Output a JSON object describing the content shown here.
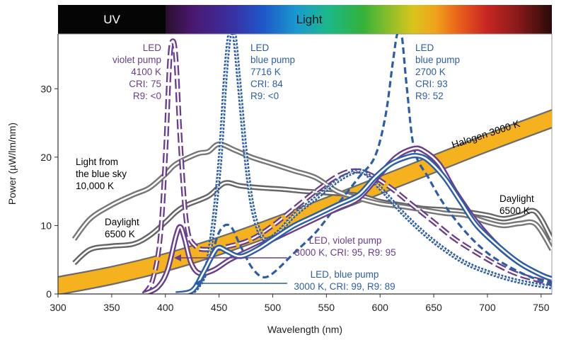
{
  "chart_data": {
    "type": "line",
    "title": "",
    "xlabel": "Wavelength (nm)",
    "ylabel": "Power (µW/lm/nm)",
    "xlim": [
      300,
      760
    ],
    "ylim": [
      0,
      38
    ],
    "x_ticks": [
      300,
      350,
      400,
      450,
      500,
      550,
      600,
      650,
      700,
      750
    ],
    "y_ticks": [
      0,
      10,
      20,
      30
    ],
    "grid": false,
    "band": {
      "uv_label": "UV",
      "light_label": "Light",
      "uv_range": [
        300,
        400
      ],
      "light_range": [
        400,
        760
      ]
    },
    "series": [
      {
        "id": "halogen",
        "name": "Halogen 3000 K",
        "style": "band",
        "color": "#f5b21e",
        "edge": "#6b6b6b",
        "half_width": 1.3,
        "points": [
          [
            300,
            1.2
          ],
          [
            350,
            2.7
          ],
          [
            400,
            4.6
          ],
          [
            450,
            7.0
          ],
          [
            500,
            9.8
          ],
          [
            550,
            12.8
          ],
          [
            600,
            15.9
          ],
          [
            650,
            19.0
          ],
          [
            700,
            22.1
          ],
          [
            760,
            25.6
          ]
        ]
      },
      {
        "id": "daylight",
        "name": "Daylight 6500 K",
        "style": "double",
        "color": "#666666",
        "points": [
          [
            315,
            4.5
          ],
          [
            330,
            6.5
          ],
          [
            350,
            7.0
          ],
          [
            370,
            7.3
          ],
          [
            385,
            8.5
          ],
          [
            400,
            10.5
          ],
          [
            410,
            12.0
          ],
          [
            420,
            13.0
          ],
          [
            440,
            14.3
          ],
          [
            455,
            16.2
          ],
          [
            470,
            15.8
          ],
          [
            490,
            15.5
          ],
          [
            510,
            15.3
          ],
          [
            530,
            15.0
          ],
          [
            550,
            14.8
          ],
          [
            580,
            14.4
          ],
          [
            600,
            13.5
          ],
          [
            620,
            13.0
          ],
          [
            640,
            12.5
          ],
          [
            660,
            12.3
          ],
          [
            680,
            12.0
          ],
          [
            700,
            11.5
          ],
          [
            715,
            11.0
          ],
          [
            730,
            11.5
          ],
          [
            745,
            12.0
          ],
          [
            760,
            8.0
          ]
        ]
      },
      {
        "id": "blue_sky",
        "name": "Light from the blue sky 10,000 K",
        "style": "double",
        "color": "#777777",
        "points": [
          [
            315,
            8.0
          ],
          [
            330,
            11.0
          ],
          [
            350,
            13.0
          ],
          [
            370,
            14.5
          ],
          [
            385,
            15.5
          ],
          [
            400,
            17.5
          ],
          [
            410,
            19.0
          ],
          [
            430,
            20.5
          ],
          [
            440,
            20.8
          ],
          [
            450,
            21.9
          ],
          [
            465,
            21.0
          ],
          [
            480,
            20.0
          ],
          [
            500,
            19.0
          ],
          [
            520,
            18.0
          ],
          [
            540,
            17.0
          ],
          [
            560,
            15.0
          ],
          [
            580,
            14.0
          ],
          [
            600,
            13.2
          ],
          [
            620,
            12.8
          ],
          [
            640,
            12.3
          ],
          [
            660,
            11.8
          ],
          [
            680,
            11.5
          ],
          [
            700,
            10.5
          ],
          [
            715,
            10.0
          ],
          [
            730,
            10.3
          ],
          [
            745,
            10.2
          ],
          [
            760,
            6.5
          ]
        ]
      },
      {
        "id": "led_violet_4100",
        "name": "LED violet pump 4100 K CRI: 75 R9: <0",
        "style": "dashed-double",
        "color": "#6b3e8c",
        "points": [
          [
            380,
            0
          ],
          [
            388,
            2
          ],
          [
            395,
            8
          ],
          [
            400,
            20
          ],
          [
            404,
            34
          ],
          [
            407,
            37
          ],
          [
            410,
            34
          ],
          [
            414,
            22
          ],
          [
            420,
            10
          ],
          [
            428,
            7
          ],
          [
            440,
            6.5
          ],
          [
            460,
            7.0
          ],
          [
            480,
            8.0
          ],
          [
            500,
            10.0
          ],
          [
            520,
            12.5
          ],
          [
            540,
            15.0
          ],
          [
            560,
            17.2
          ],
          [
            575,
            18.0
          ],
          [
            590,
            17.5
          ],
          [
            610,
            15.5
          ],
          [
            630,
            13.0
          ],
          [
            650,
            10.5
          ],
          [
            670,
            8.0
          ],
          [
            690,
            6.0
          ],
          [
            710,
            4.2
          ],
          [
            730,
            2.8
          ],
          [
            760,
            1.5
          ]
        ]
      },
      {
        "id": "led_blue_7716",
        "name": "LED blue pump 7716 K CRI: 84 R9: <0",
        "style": "dotted-double",
        "color": "#2c5ea8",
        "points": [
          [
            420,
            0
          ],
          [
            430,
            1
          ],
          [
            440,
            5
          ],
          [
            450,
            18
          ],
          [
            456,
            32
          ],
          [
            460,
            38
          ],
          [
            464,
            38
          ],
          [
            468,
            32
          ],
          [
            475,
            20
          ],
          [
            482,
            12
          ],
          [
            492,
            8
          ],
          [
            505,
            9
          ],
          [
            520,
            11.5
          ],
          [
            540,
            14.0
          ],
          [
            560,
            16.5
          ],
          [
            575,
            17.8
          ],
          [
            585,
            17.8
          ],
          [
            600,
            15.5
          ],
          [
            620,
            12.0
          ],
          [
            640,
            9.0
          ],
          [
            660,
            6.5
          ],
          [
            680,
            4.5
          ],
          [
            700,
            3.2
          ],
          [
            720,
            2.2
          ],
          [
            740,
            1.5
          ],
          [
            760,
            1.0
          ]
        ]
      },
      {
        "id": "led_blue_2700",
        "name": "LED blue pump 2700 K CRI: 93 R9: 52",
        "style": "dashed",
        "color": "#2c5ea8",
        "points": [
          [
            420,
            0
          ],
          [
            430,
            1
          ],
          [
            440,
            4
          ],
          [
            450,
            9
          ],
          [
            460,
            10
          ],
          [
            470,
            7
          ],
          [
            480,
            4
          ],
          [
            490,
            2.5
          ],
          [
            500,
            3
          ],
          [
            520,
            6
          ],
          [
            540,
            9
          ],
          [
            560,
            13
          ],
          [
            580,
            17
          ],
          [
            595,
            20
          ],
          [
            605,
            26
          ],
          [
            612,
            34
          ],
          [
            616,
            38
          ],
          [
            620,
            38
          ],
          [
            625,
            30
          ],
          [
            632,
            21
          ],
          [
            645,
            17
          ],
          [
            660,
            13
          ],
          [
            680,
            9
          ],
          [
            700,
            6
          ],
          [
            720,
            4
          ],
          [
            740,
            2.5
          ],
          [
            760,
            1.5
          ]
        ]
      },
      {
        "id": "led_violet_3000",
        "name": "LED, violet pump 3000 K, CRI: 95, R9: 95",
        "style": "double",
        "color": "#6b3e8c",
        "points": [
          [
            380,
            0
          ],
          [
            393,
            1
          ],
          [
            402,
            3.5
          ],
          [
            410,
            8.5
          ],
          [
            414,
            9.8
          ],
          [
            418,
            8.0
          ],
          [
            424,
            4.5
          ],
          [
            432,
            3.0
          ],
          [
            445,
            3.5
          ],
          [
            460,
            5.0
          ],
          [
            480,
            6.5
          ],
          [
            500,
            8.0
          ],
          [
            520,
            9.5
          ],
          [
            540,
            11.0
          ],
          [
            560,
            12.5
          ],
          [
            580,
            14.0
          ],
          [
            600,
            17.5
          ],
          [
            615,
            20.0
          ],
          [
            630,
            21.2
          ],
          [
            640,
            21.0
          ],
          [
            655,
            19.0
          ],
          [
            670,
            15.0
          ],
          [
            690,
            10.5
          ],
          [
            710,
            7.0
          ],
          [
            730,
            4.5
          ],
          [
            750,
            2.8
          ],
          [
            760,
            2.2
          ]
        ]
      },
      {
        "id": "led_blue_3000",
        "name": "LED, blue pump 3000 K, CRI: 99, R9: 89",
        "style": "double",
        "color": "#2c5ea8",
        "points": [
          [
            410,
            0
          ],
          [
            425,
            0.5
          ],
          [
            435,
            3
          ],
          [
            445,
            6
          ],
          [
            450,
            6.8
          ],
          [
            458,
            6.2
          ],
          [
            470,
            5.5
          ],
          [
            485,
            6.5
          ],
          [
            500,
            8
          ],
          [
            520,
            10
          ],
          [
            540,
            11.5
          ],
          [
            560,
            13
          ],
          [
            580,
            14.5
          ],
          [
            595,
            17
          ],
          [
            610,
            19
          ],
          [
            625,
            20
          ],
          [
            635,
            20.2
          ],
          [
            645,
            19.5
          ],
          [
            660,
            17
          ],
          [
            675,
            13.5
          ],
          [
            690,
            10
          ],
          [
            710,
            7
          ],
          [
            730,
            4.5
          ],
          [
            750,
            2.8
          ],
          [
            760,
            2.2
          ]
        ]
      }
    ],
    "annotations": [
      {
        "id": "ann_violet_4100",
        "color": "#6b3e8c",
        "lines": [
          "LED",
          "violet pump",
          "4100 K",
          "CRI: 75",
          "R9: <0"
        ]
      },
      {
        "id": "ann_blue_7716",
        "color": "#2c5ea8",
        "lines": [
          "LED",
          "blue pump",
          "7716 K",
          "CRI: 84",
          "R9: <0"
        ]
      },
      {
        "id": "ann_blue_2700",
        "color": "#2c5ea8",
        "lines": [
          "LED",
          "blue pump",
          "2700 K",
          "CRI: 93",
          "R9: 52"
        ]
      },
      {
        "id": "ann_blue_sky",
        "color": "#000000",
        "lines": [
          "Light from",
          "the blue sky",
          "10,000 K"
        ]
      },
      {
        "id": "ann_daylight_left",
        "color": "#000000",
        "lines": [
          "Daylight",
          "6500 K"
        ]
      },
      {
        "id": "ann_daylight_right",
        "color": "#000000",
        "lines": [
          "Daylight",
          "6500 K"
        ]
      },
      {
        "id": "ann_led_violet_3000",
        "color": "#6b3e8c",
        "lines": [
          "LED, violet pump",
          "3000 K, CRI: 95, R9: 95"
        ]
      },
      {
        "id": "ann_led_blue_3000",
        "color": "#2c5ea8",
        "lines": [
          "LED, blue pump",
          "3000 K, CRI: 99, R9: 89"
        ]
      },
      {
        "id": "ann_halogen",
        "color": "#000000",
        "lines": [
          "Halogen 3000 K"
        ]
      }
    ]
  }
}
